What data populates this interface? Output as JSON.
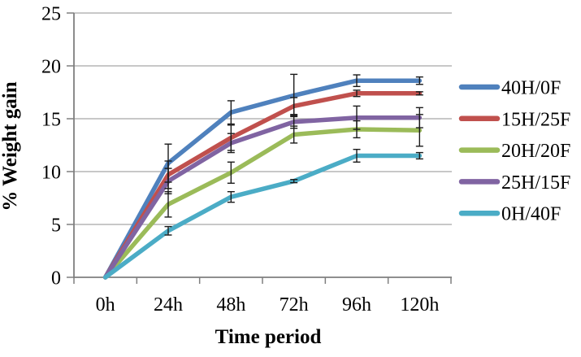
{
  "chart_data": {
    "type": "line",
    "title": "",
    "xlabel": "Time period",
    "ylabel": "% Weight gain",
    "categories": [
      "0h",
      "24h",
      "48h",
      "72h",
      "96h",
      "120h"
    ],
    "yticks": [
      0,
      5,
      10,
      15,
      20,
      25
    ],
    "ylim": [
      0,
      25
    ],
    "grid": true,
    "legend_position": "right",
    "error_bars": true,
    "series": [
      {
        "name": "40H/0F",
        "color": "#4F81BD",
        "values": [
          0,
          10.8,
          15.6,
          17.2,
          18.6,
          18.6
        ],
        "err": [
          0,
          1.8,
          1.1,
          2.0,
          0.55,
          0.35
        ]
      },
      {
        "name": "15H/25F",
        "color": "#C0504D",
        "values": [
          0,
          9.7,
          13.2,
          16.2,
          17.4,
          17.4
        ],
        "err": [
          0,
          1.3,
          1.2,
          0.8,
          0.3,
          0.15
        ]
      },
      {
        "name": "20H/20F",
        "color": "#9BBB59",
        "values": [
          0,
          6.9,
          9.9,
          13.5,
          14.0,
          13.9
        ],
        "err": [
          0,
          1.2,
          1.0,
          0.8,
          0.8,
          1.5
        ]
      },
      {
        "name": "25H/15F",
        "color": "#8064A2",
        "values": [
          0,
          9.1,
          12.7,
          14.7,
          15.1,
          15.1
        ],
        "err": [
          0,
          1.2,
          0.9,
          0.6,
          1.1,
          0.95
        ]
      },
      {
        "name": "0H/40F",
        "color": "#4BACC6",
        "values": [
          0,
          4.4,
          7.6,
          9.1,
          11.5,
          11.5
        ],
        "err": [
          0,
          0.4,
          0.5,
          0.15,
          0.6,
          0.3
        ]
      }
    ],
    "colors": {
      "gridline": "#A6A6A6",
      "axis": "#7F7F7F",
      "errorbar": "#1a1a1a",
      "text": "#000000"
    }
  }
}
